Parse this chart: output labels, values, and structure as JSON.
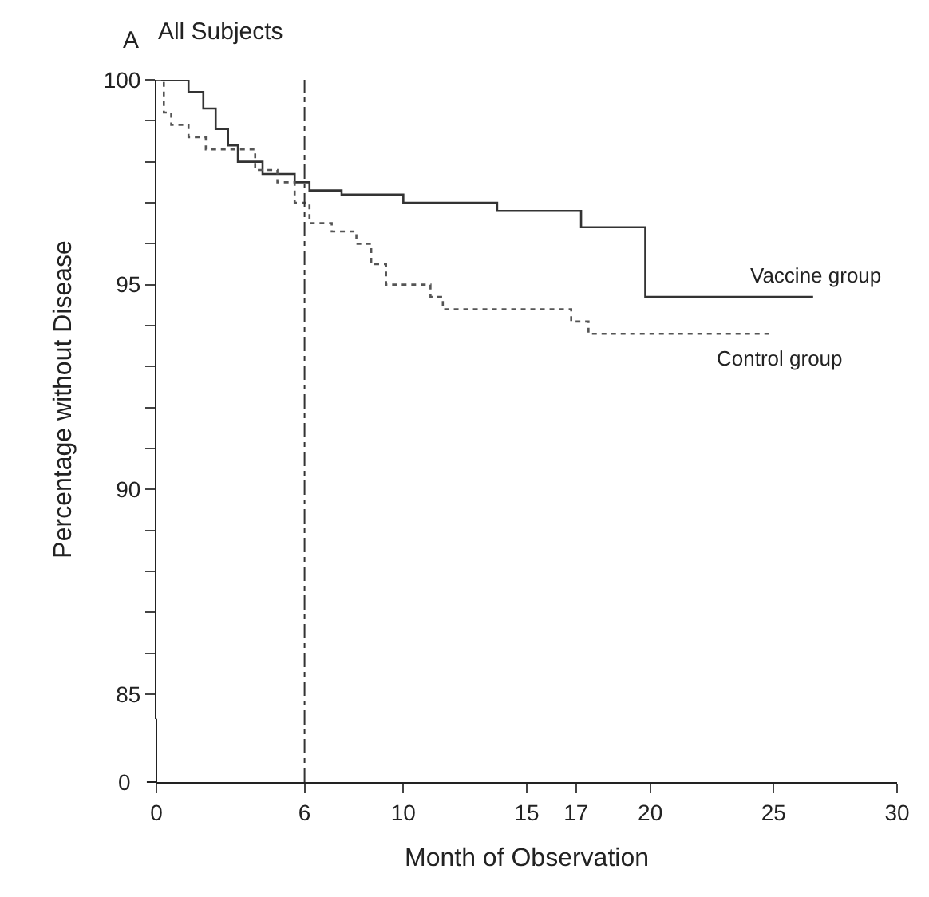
{
  "chart_data": {
    "type": "step",
    "title": "All Subjects",
    "annotations": [
      "A",
      "0"
    ],
    "xlabel": "Month of Observation",
    "ylabel": "Percentage without Disease",
    "xlim": [
      0,
      30
    ],
    "xticks": [
      0,
      6,
      10,
      15,
      17,
      20,
      25,
      30
    ],
    "ylim": [
      84.4,
      100
    ],
    "yticks": [
      85,
      {
        "value": 86,
        "label": null
      },
      {
        "value": 87,
        "label": null
      },
      {
        "value": 88,
        "label": null
      },
      {
        "value": 89,
        "label": null
      },
      90,
      {
        "value": 91,
        "label": null
      },
      {
        "value": 92,
        "label": null
      },
      {
        "value": 93,
        "label": null
      },
      {
        "value": 94,
        "label": null
      },
      95,
      {
        "value": 96,
        "label": null
      },
      {
        "value": 97,
        "label": null
      },
      {
        "value": 98,
        "label": null
      },
      {
        "value": 99,
        "label": null
      },
      100
    ],
    "legend": false,
    "ref_lines": [
      {
        "axis": "x",
        "value": 6,
        "label": null,
        "color": "#333333",
        "line_style": "dashdot"
      }
    ],
    "series": [
      {
        "name": "Vaccine group",
        "color": "#333333",
        "line_style": "solid",
        "x": [
          0,
          1.3,
          1.9,
          2.4,
          2.9,
          3.3,
          4.3,
          5.6,
          6.2,
          7.5,
          10.0,
          13.8,
          17.2,
          19.8,
          26.6
        ],
        "values": [
          100,
          99.7,
          99.3,
          98.8,
          98.4,
          98.0,
          97.7,
          97.5,
          97.3,
          97.2,
          97.0,
          96.8,
          96.4,
          94.7,
          94.7
        ]
      },
      {
        "name": "Control group",
        "color": "#555555",
        "line_style": "dotted",
        "x": [
          0,
          0.3,
          0.6,
          1.3,
          2.0,
          4.0,
          4.9,
          5.6,
          6.2,
          7.1,
          8.1,
          8.7,
          9.3,
          11.1,
          11.6,
          16.8,
          17.5,
          25.0
        ],
        "values": [
          100,
          99.2,
          98.9,
          98.6,
          98.3,
          97.8,
          97.5,
          97.0,
          96.5,
          96.3,
          96.0,
          95.5,
          95.0,
          94.7,
          94.4,
          94.1,
          93.8,
          93.8
        ]
      }
    ]
  }
}
